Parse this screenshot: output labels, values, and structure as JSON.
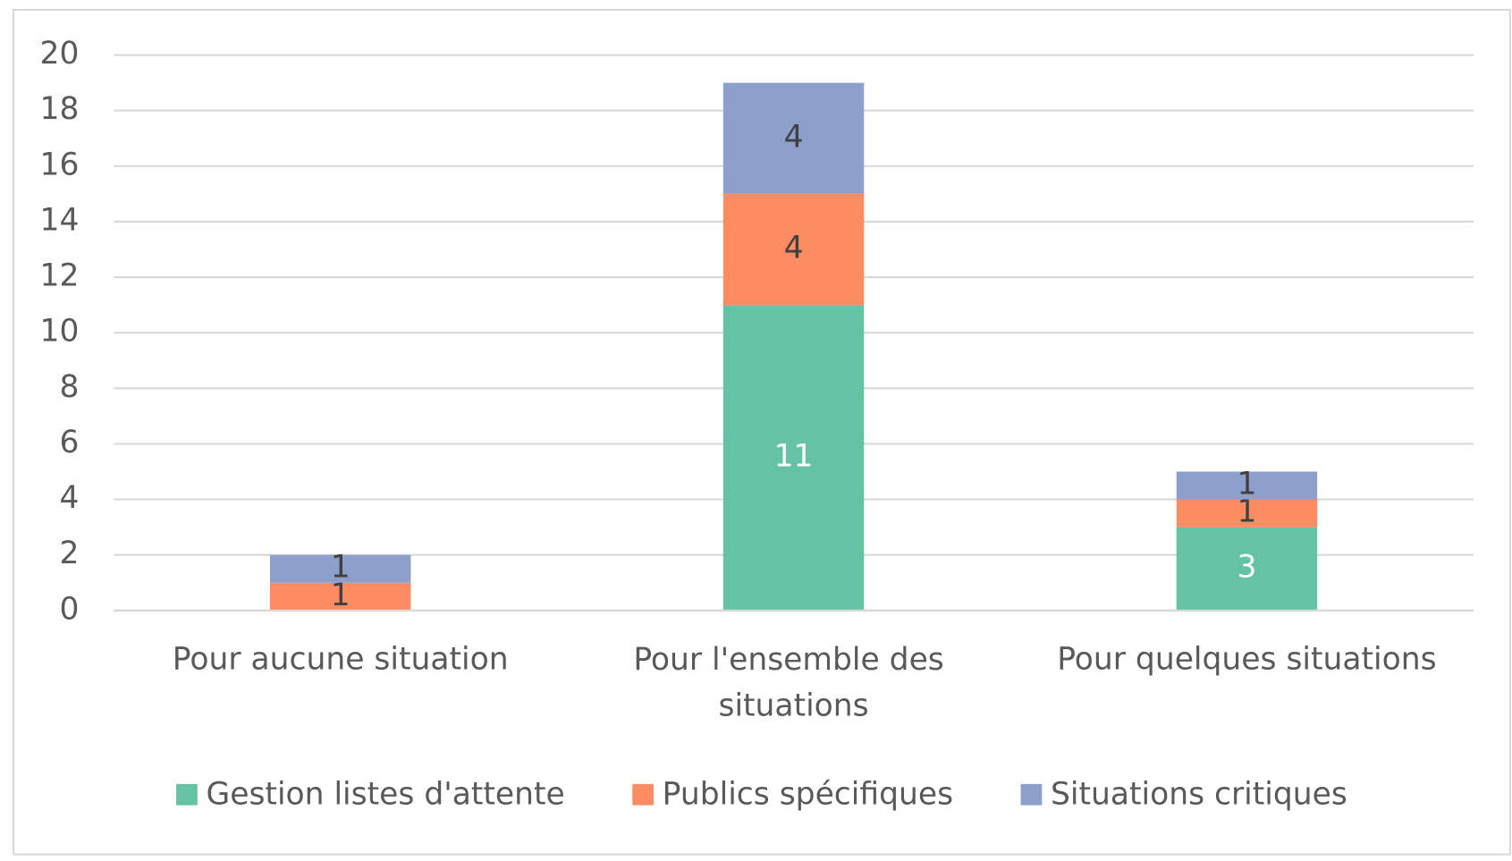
{
  "chart_data": {
    "type": "stacked_bar",
    "categories": [
      "Pour aucune situation",
      "Pour l'ensemble des situations",
      "Pour quelques situations"
    ],
    "series": [
      {
        "name": "Gestion listes d'attente",
        "color": "#66c2a5",
        "values": [
          0,
          11,
          3
        ]
      },
      {
        "name": "Publics spécifiques",
        "color": "#fc8d62",
        "values": [
          1,
          4,
          1
        ]
      },
      {
        "name": "Situations critiques",
        "color": "#8da0cb",
        "values": [
          1,
          4,
          1
        ]
      }
    ],
    "ylim": [
      0,
      20
    ],
    "yticks": [
      0,
      2,
      4,
      6,
      8,
      10,
      12,
      14,
      16,
      18,
      20
    ],
    "grid": true,
    "legend": "bottom"
  }
}
